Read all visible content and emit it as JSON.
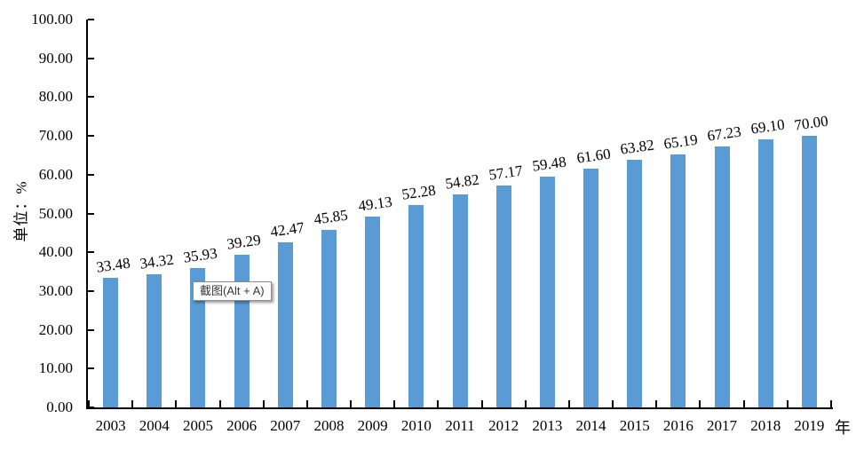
{
  "chart_data": {
    "type": "bar",
    "title": "",
    "categories": [
      "2003",
      "2004",
      "2005",
      "2006",
      "2007",
      "2008",
      "2009",
      "2010",
      "2011",
      "2012",
      "2013",
      "2014",
      "2015",
      "2016",
      "2017",
      "2018",
      "2019"
    ],
    "values": [
      33.48,
      34.32,
      35.93,
      39.29,
      42.47,
      45.85,
      49.13,
      52.28,
      54.82,
      57.17,
      59.48,
      61.6,
      63.82,
      65.19,
      67.23,
      69.1,
      70.0
    ],
    "value_labels": [
      "33.48",
      "34.32",
      "35.93",
      "39.29",
      "42.47",
      "45.85",
      "49.13",
      "52.28",
      "54.82",
      "57.17",
      "59.48",
      "61.60",
      "63.82",
      "65.19",
      "67.23",
      "69.10",
      "70.00"
    ],
    "ylabel": "单位：%",
    "xlabel": "年",
    "ylim": [
      0,
      100
    ],
    "ytick_step": 10,
    "ytick_labels": [
      "100.00",
      "90.00",
      "80.00",
      "70.00",
      "60.00",
      "50.00",
      "40.00",
      "30.00",
      "20.00",
      "10.00",
      "0.00"
    ],
    "grid": false,
    "legend": null,
    "bar_color": "#5B9BD5",
    "axis_color": "#000000",
    "text_color": "#000000"
  },
  "overlay_tooltip": {
    "text": "截图(Alt + A)"
  }
}
